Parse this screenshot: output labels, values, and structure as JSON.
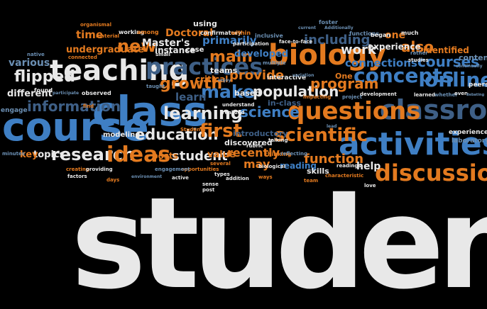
{
  "colors": {
    "white": "#e8e8e8",
    "blue": "#3f7fc4",
    "orange": "#e37a1f",
    "steel": "#6b8fb3",
    "slate": "#3e5f86"
  },
  "words": [
    {
      "text": "students",
      "c": "white"
    },
    {
      "text": "course",
      "c": "blue"
    },
    {
      "text": "class",
      "c": "blue"
    },
    {
      "text": "teaching",
      "c": "white"
    },
    {
      "text": "classroom",
      "c": "slate"
    },
    {
      "text": "activities",
      "c": "blue"
    },
    {
      "text": "questions",
      "c": "orange"
    },
    {
      "text": "concepts",
      "c": "blue"
    },
    {
      "text": "biology",
      "c": "orange"
    },
    {
      "text": "discussion",
      "c": "orange"
    },
    {
      "text": "learning",
      "c": "white"
    },
    {
      "text": "scientific",
      "c": "orange"
    },
    {
      "text": "research",
      "c": "white"
    },
    {
      "text": "ideas",
      "c": "orange"
    },
    {
      "text": "flipped",
      "c": "white"
    },
    {
      "text": "information",
      "c": "slate"
    },
    {
      "text": "practices",
      "c": "slate"
    },
    {
      "text": "online",
      "c": "blue"
    },
    {
      "text": "education",
      "c": "white"
    },
    {
      "text": "growth",
      "c": "orange"
    },
    {
      "text": "make",
      "c": "blue"
    },
    {
      "text": "main",
      "c": "orange"
    },
    {
      "text": "science",
      "c": "blue"
    },
    {
      "text": "population",
      "c": "white"
    },
    {
      "text": "first",
      "c": "orange"
    },
    {
      "text": "new",
      "c": "orange"
    },
    {
      "text": "courses",
      "c": "blue"
    },
    {
      "text": "work",
      "c": "white"
    },
    {
      "text": "also",
      "c": "orange"
    },
    {
      "text": "program",
      "c": "orange"
    },
    {
      "text": "including",
      "c": "slate"
    },
    {
      "text": "provide",
      "c": "orange"
    },
    {
      "text": "student",
      "c": "white"
    },
    {
      "text": "function",
      "c": "orange"
    },
    {
      "text": "time",
      "c": "orange"
    },
    {
      "text": "various",
      "c": "steel"
    },
    {
      "text": "different",
      "c": "white"
    },
    {
      "text": "undergraduate",
      "c": "orange"
    },
    {
      "text": "Master's",
      "c": "white"
    },
    {
      "text": "instance",
      "c": "white"
    },
    {
      "text": "Doctoral",
      "c": "orange"
    },
    {
      "text": "primarily",
      "c": "blue"
    },
    {
      "text": "developed",
      "c": "blue"
    },
    {
      "text": "connections",
      "c": "blue"
    },
    {
      "text": "experience",
      "c": "white"
    },
    {
      "text": "identified",
      "c": "orange"
    },
    {
      "text": "content",
      "c": "steel"
    },
    {
      "text": "learn",
      "c": "slate"
    },
    {
      "text": "critical",
      "c": "orange"
    },
    {
      "text": "teams",
      "c": "white"
    },
    {
      "text": "interactive",
      "c": "white"
    },
    {
      "text": "One",
      "c": "orange"
    },
    {
      "text": "one",
      "c": "orange"
    },
    {
      "text": "topics",
      "c": "white"
    },
    {
      "text": "key",
      "c": "orange"
    },
    {
      "text": "modeling",
      "c": "white"
    },
    {
      "text": "posts",
      "c": "orange"
    },
    {
      "text": "value",
      "c": "orange"
    },
    {
      "text": "recently",
      "c": "orange"
    },
    {
      "text": "discovered",
      "c": "white"
    },
    {
      "text": "introductory",
      "c": "slate"
    },
    {
      "text": "reading",
      "c": "blue"
    },
    {
      "text": "skills",
      "c": "white"
    },
    {
      "text": "help",
      "c": "white"
    },
    {
      "text": "may",
      "c": "orange"
    },
    {
      "text": "based",
      "c": "white"
    },
    {
      "text": "in-class",
      "c": "slate"
    },
    {
      "text": "experiences",
      "c": "white"
    },
    {
      "text": "laboratory",
      "c": "steel"
    },
    {
      "text": "engage",
      "c": "steel"
    },
    {
      "text": "using",
      "c": "white"
    },
    {
      "text": "working",
      "c": "white"
    },
    {
      "text": "among",
      "c": "orange"
    },
    {
      "text": "confirmatory",
      "c": "white"
    },
    {
      "text": "within",
      "c": "orange"
    },
    {
      "text": "inclusive",
      "c": "steel"
    },
    {
      "text": "foster",
      "c": "steel"
    },
    {
      "text": "functions",
      "c": "steel"
    },
    {
      "text": "began",
      "c": "white"
    },
    {
      "text": "much",
      "c": "white"
    },
    {
      "text": "organismal",
      "c": "orange"
    },
    {
      "text": "material",
      "c": "orange"
    },
    {
      "text": "native",
      "c": "steel"
    },
    {
      "text": "connected",
      "c": "orange"
    },
    {
      "text": "small",
      "c": "white"
    },
    {
      "text": "case",
      "c": "white"
    },
    {
      "text": "participation",
      "c": "white"
    },
    {
      "text": "multiple",
      "c": "steel"
    },
    {
      "text": "face-to-face",
      "c": "white"
    },
    {
      "text": "studies",
      "c": "white"
    },
    {
      "text": "rather",
      "c": "steel"
    },
    {
      "text": "found",
      "c": "white"
    },
    {
      "text": "observed",
      "c": "white"
    },
    {
      "text": "find",
      "c": "orange"
    },
    {
      "text": "taught",
      "c": "steel"
    },
    {
      "text": "understand",
      "c": "white"
    },
    {
      "text": "realized",
      "c": "white"
    },
    {
      "text": "rubric",
      "c": "white"
    },
    {
      "text": "talking",
      "c": "white"
    },
    {
      "text": "thinking",
      "c": "orange"
    },
    {
      "text": "reflecting",
      "c": "steel"
    },
    {
      "text": "biological",
      "c": "white"
    },
    {
      "text": "impacting",
      "c": "orange"
    },
    {
      "text": "project",
      "c": "steel"
    },
    {
      "text": "development",
      "c": "white"
    },
    {
      "text": "learned",
      "c": "white"
    },
    {
      "text": "whether",
      "c": "steel"
    },
    {
      "text": "peers",
      "c": "white"
    },
    {
      "text": "even",
      "c": "white"
    },
    {
      "text": "Students",
      "c": "orange"
    },
    {
      "text": "opportunities",
      "c": "orange"
    },
    {
      "text": "engagement",
      "c": "steel"
    },
    {
      "text": "active",
      "c": "white"
    },
    {
      "text": "environment",
      "c": "steel"
    },
    {
      "text": "creating",
      "c": "orange"
    },
    {
      "text": "providing",
      "c": "white"
    },
    {
      "text": "factors",
      "c": "white"
    },
    {
      "text": "minutes",
      "c": "steel"
    },
    {
      "text": "days",
      "c": "orange"
    },
    {
      "text": "several",
      "c": "orange"
    },
    {
      "text": "types",
      "c": "white"
    },
    {
      "text": "addition",
      "c": "white"
    },
    {
      "text": "sense",
      "c": "white"
    },
    {
      "text": "post",
      "c": "white"
    },
    {
      "text": "ways",
      "c": "orange"
    },
    {
      "text": "team",
      "c": "orange"
    },
    {
      "text": "characteristic",
      "c": "orange"
    },
    {
      "text": "readings",
      "c": "white"
    },
    {
      "text": "love",
      "c": "white"
    },
    {
      "text": "enjoy",
      "c": "steel"
    },
    {
      "text": "participate",
      "c": "steel"
    },
    {
      "text": "Additionally",
      "c": "steel"
    },
    {
      "text": "current",
      "c": "steel"
    },
    {
      "text": "continually",
      "c": "steel"
    },
    {
      "text": "debating",
      "c": "steel"
    },
    {
      "text": "variation",
      "c": "steel"
    },
    {
      "text": "lead",
      "c": "steel"
    }
  ]
}
